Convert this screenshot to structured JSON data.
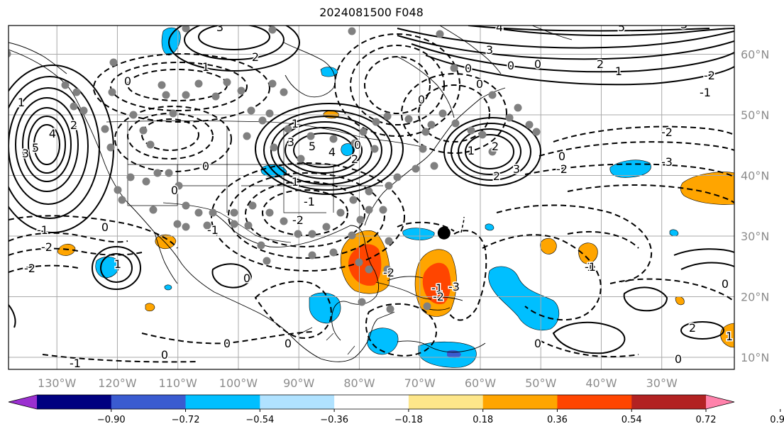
{
  "title": "2024081500 F048",
  "latitudes": [
    {
      "label": "10°N",
      "value": 10
    },
    {
      "label": "20°N",
      "value": 20
    },
    {
      "label": "30°N",
      "value": 30
    },
    {
      "label": "40°N",
      "value": 40
    },
    {
      "label": "50°N",
      "value": 50
    },
    {
      "label": "60°N",
      "value": 60
    }
  ],
  "longitudes": [
    {
      "label": "130°W",
      "value": -130
    },
    {
      "label": "120°W",
      "value": -120
    },
    {
      "label": "110°W",
      "value": -110
    },
    {
      "label": "100°W",
      "value": -100
    },
    {
      "label": "90°W",
      "value": -90
    },
    {
      "label": "80°W",
      "value": -80
    },
    {
      "label": "70°W",
      "value": -70
    },
    {
      "label": "60°W",
      "value": -60
    },
    {
      "label": "50°W",
      "value": -50
    },
    {
      "label": "40°W",
      "value": -40
    },
    {
      "label": "30°W",
      "value": -30
    }
  ],
  "colorbar": {
    "ticks": [
      "−0.90",
      "−0.72",
      "−0.54",
      "−0.36",
      "−0.18",
      "0.18",
      "0.36",
      "0.54",
      "0.72",
      "0.90"
    ],
    "colors": [
      "#9b30d0",
      "#000080",
      "#3a5bd0",
      "#00bfff",
      "#b0e2ff",
      "#ffffff",
      "#fde68a",
      "#ffa500",
      "#ff4500",
      "#b22222",
      "#ff82ab"
    ]
  },
  "contour_labels": [
    "5",
    "4",
    "3",
    "2",
    "1",
    "0",
    "-1",
    "-2",
    "-3"
  ],
  "marker": {
    "lon": -66,
    "lat": 30.5
  }
}
